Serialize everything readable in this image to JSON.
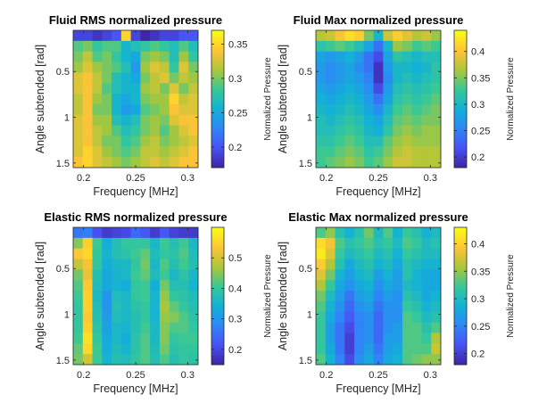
{
  "chart_data": [
    {
      "type": "heatmap",
      "title": "Fluid RMS normalized pressure",
      "xlabel": "Frequency [MHz]",
      "ylabel": "Angle subtended [rad]",
      "colorbar_label": "Normalized Pressure",
      "xlim": [
        0.19,
        0.31
      ],
      "ylim": [
        0.05,
        1.55
      ],
      "xticks": [
        0.2,
        0.25,
        0.3
      ],
      "xtick_labels": [
        "0.2",
        "0.25",
        "0.3"
      ],
      "yticks": [
        0.5,
        1,
        1.5
      ],
      "ytick_labels": [
        "0.5",
        "1",
        "1.5"
      ],
      "clim": [
        0.17,
        0.37
      ],
      "cticks": [
        0.2,
        0.25,
        0.3,
        0.35
      ],
      "ctick_labels": [
        "0.2",
        "0.25",
        "0.3",
        "0.35"
      ],
      "colormap": "parula",
      "grid": false,
      "z": [
        [
          0.19,
          0.19,
          0.18,
          0.19,
          0.2,
          0.35,
          0.19,
          0.17,
          0.18,
          0.19,
          0.19,
          0.2,
          0.2
        ],
        [
          0.29,
          0.3,
          0.28,
          0.29,
          0.29,
          0.26,
          0.27,
          0.28,
          0.29,
          0.28,
          0.27,
          0.29,
          0.27
        ],
        [
          0.3,
          0.32,
          0.29,
          0.3,
          0.28,
          0.26,
          0.25,
          0.3,
          0.31,
          0.3,
          0.27,
          0.31,
          0.28
        ],
        [
          0.31,
          0.33,
          0.31,
          0.3,
          0.29,
          0.27,
          0.24,
          0.31,
          0.33,
          0.32,
          0.28,
          0.33,
          0.3
        ],
        [
          0.33,
          0.34,
          0.32,
          0.3,
          0.27,
          0.26,
          0.25,
          0.3,
          0.32,
          0.33,
          0.3,
          0.32,
          0.31
        ],
        [
          0.33,
          0.34,
          0.32,
          0.29,
          0.27,
          0.26,
          0.26,
          0.31,
          0.32,
          0.3,
          0.33,
          0.3,
          0.32
        ],
        [
          0.32,
          0.34,
          0.31,
          0.3,
          0.26,
          0.25,
          0.26,
          0.3,
          0.31,
          0.31,
          0.35,
          0.32,
          0.33
        ],
        [
          0.32,
          0.34,
          0.3,
          0.3,
          0.26,
          0.24,
          0.25,
          0.29,
          0.3,
          0.31,
          0.34,
          0.33,
          0.33
        ],
        [
          0.33,
          0.34,
          0.31,
          0.31,
          0.27,
          0.26,
          0.27,
          0.3,
          0.31,
          0.3,
          0.33,
          0.34,
          0.34
        ],
        [
          0.33,
          0.34,
          0.32,
          0.31,
          0.29,
          0.27,
          0.28,
          0.3,
          0.31,
          0.29,
          0.31,
          0.33,
          0.34
        ],
        [
          0.33,
          0.34,
          0.32,
          0.3,
          0.3,
          0.28,
          0.29,
          0.31,
          0.32,
          0.3,
          0.31,
          0.32,
          0.33
        ],
        [
          0.33,
          0.35,
          0.33,
          0.31,
          0.3,
          0.29,
          0.3,
          0.32,
          0.32,
          0.31,
          0.32,
          0.33,
          0.34
        ],
        [
          0.34,
          0.35,
          0.33,
          0.32,
          0.31,
          0.3,
          0.31,
          0.32,
          0.33,
          0.32,
          0.33,
          0.34,
          0.34
        ]
      ]
    },
    {
      "type": "heatmap",
      "title": "Fluid Max normalized pressure",
      "xlabel": "Frequency [MHz]",
      "ylabel": "Angle subtended [rad]",
      "colorbar_label": "Normalized Pressure",
      "xlim": [
        0.19,
        0.31
      ],
      "ylim": [
        0.05,
        1.55
      ],
      "xticks": [
        0.2,
        0.25,
        0.3
      ],
      "xtick_labels": [
        "0.2",
        "0.25",
        "0.3"
      ],
      "yticks": [
        0.5,
        1,
        1.5
      ],
      "ytick_labels": [
        "0.5",
        "1",
        "1.5"
      ],
      "clim": [
        0.18,
        0.44
      ],
      "cticks": [
        0.2,
        0.25,
        0.3,
        0.35,
        0.4
      ],
      "ctick_labels": [
        "0.2",
        "0.25",
        "0.3",
        "0.35",
        "0.4"
      ],
      "colormap": "parula",
      "grid": false,
      "z": [
        [
          0.37,
          0.38,
          0.4,
          0.42,
          0.41,
          0.35,
          0.3,
          0.38,
          0.41,
          0.39,
          0.37,
          0.38,
          0.36
        ],
        [
          0.32,
          0.33,
          0.34,
          0.33,
          0.31,
          0.28,
          0.24,
          0.3,
          0.36,
          0.35,
          0.33,
          0.34,
          0.33
        ],
        [
          0.28,
          0.27,
          0.28,
          0.29,
          0.27,
          0.24,
          0.21,
          0.28,
          0.32,
          0.31,
          0.3,
          0.31,
          0.31
        ],
        [
          0.27,
          0.26,
          0.27,
          0.28,
          0.26,
          0.24,
          0.19,
          0.27,
          0.3,
          0.3,
          0.29,
          0.3,
          0.32
        ],
        [
          0.27,
          0.26,
          0.27,
          0.28,
          0.27,
          0.25,
          0.19,
          0.26,
          0.3,
          0.31,
          0.3,
          0.31,
          0.32
        ],
        [
          0.28,
          0.27,
          0.28,
          0.29,
          0.28,
          0.26,
          0.21,
          0.27,
          0.31,
          0.32,
          0.31,
          0.32,
          0.33
        ],
        [
          0.29,
          0.28,
          0.29,
          0.3,
          0.29,
          0.27,
          0.24,
          0.28,
          0.32,
          0.33,
          0.32,
          0.33,
          0.34
        ],
        [
          0.3,
          0.29,
          0.3,
          0.31,
          0.3,
          0.28,
          0.26,
          0.3,
          0.33,
          0.34,
          0.33,
          0.34,
          0.35
        ],
        [
          0.31,
          0.3,
          0.31,
          0.32,
          0.31,
          0.29,
          0.28,
          0.31,
          0.34,
          0.35,
          0.34,
          0.35,
          0.35
        ],
        [
          0.31,
          0.31,
          0.32,
          0.33,
          0.32,
          0.3,
          0.29,
          0.32,
          0.35,
          0.36,
          0.35,
          0.36,
          0.36
        ],
        [
          0.32,
          0.32,
          0.33,
          0.34,
          0.33,
          0.31,
          0.31,
          0.34,
          0.36,
          0.37,
          0.36,
          0.36,
          0.36
        ],
        [
          0.33,
          0.33,
          0.34,
          0.35,
          0.34,
          0.32,
          0.33,
          0.35,
          0.37,
          0.38,
          0.37,
          0.37,
          0.37
        ],
        [
          0.33,
          0.34,
          0.35,
          0.36,
          0.35,
          0.33,
          0.34,
          0.36,
          0.38,
          0.38,
          0.37,
          0.37,
          0.37
        ]
      ]
    },
    {
      "type": "heatmap",
      "title": "Elastic RMS normalized pressure",
      "xlabel": "Frequency [MHz]",
      "ylabel": "Angle subtended [rad]",
      "colorbar_label": "Normalized Pressure",
      "xlim": [
        0.19,
        0.31
      ],
      "ylim": [
        0.05,
        1.55
      ],
      "xticks": [
        0.2,
        0.25,
        0.3
      ],
      "xtick_labels": [
        "0.2",
        "0.25",
        "0.3"
      ],
      "yticks": [
        0.5,
        1,
        1.5
      ],
      "ytick_labels": [
        "0.5",
        "1",
        "1.5"
      ],
      "clim": [
        0.15,
        0.6
      ],
      "cticks": [
        0.2,
        0.3,
        0.4,
        0.5
      ],
      "ctick_labels": [
        "0.2",
        "0.3",
        "0.4",
        "0.5"
      ],
      "colormap": "parula",
      "grid": false,
      "z": [
        [
          0.26,
          0.27,
          0.21,
          0.18,
          0.19,
          0.2,
          0.24,
          0.22,
          0.18,
          0.22,
          0.19,
          0.18,
          0.18
        ],
        [
          0.45,
          0.55,
          0.41,
          0.34,
          0.38,
          0.4,
          0.4,
          0.4,
          0.36,
          0.41,
          0.38,
          0.41,
          0.36
        ],
        [
          0.54,
          0.56,
          0.4,
          0.35,
          0.38,
          0.39,
          0.41,
          0.43,
          0.37,
          0.4,
          0.39,
          0.42,
          0.37
        ],
        [
          0.49,
          0.53,
          0.4,
          0.34,
          0.36,
          0.36,
          0.4,
          0.44,
          0.36,
          0.42,
          0.38,
          0.41,
          0.38
        ],
        [
          0.44,
          0.52,
          0.38,
          0.33,
          0.35,
          0.36,
          0.41,
          0.43,
          0.37,
          0.41,
          0.36,
          0.39,
          0.36
        ],
        [
          0.42,
          0.54,
          0.37,
          0.33,
          0.35,
          0.34,
          0.4,
          0.41,
          0.34,
          0.44,
          0.38,
          0.38,
          0.35
        ],
        [
          0.41,
          0.55,
          0.36,
          0.3,
          0.37,
          0.36,
          0.4,
          0.41,
          0.35,
          0.46,
          0.4,
          0.39,
          0.37
        ],
        [
          0.4,
          0.55,
          0.37,
          0.3,
          0.38,
          0.36,
          0.39,
          0.4,
          0.35,
          0.47,
          0.43,
          0.4,
          0.38
        ],
        [
          0.4,
          0.54,
          0.38,
          0.31,
          0.37,
          0.36,
          0.38,
          0.4,
          0.35,
          0.46,
          0.45,
          0.42,
          0.39
        ],
        [
          0.4,
          0.55,
          0.39,
          0.32,
          0.36,
          0.35,
          0.38,
          0.41,
          0.36,
          0.45,
          0.42,
          0.42,
          0.4
        ],
        [
          0.41,
          0.57,
          0.4,
          0.33,
          0.36,
          0.34,
          0.39,
          0.42,
          0.36,
          0.45,
          0.4,
          0.41,
          0.41
        ],
        [
          0.43,
          0.56,
          0.41,
          0.34,
          0.37,
          0.35,
          0.39,
          0.42,
          0.37,
          0.44,
          0.39,
          0.4,
          0.4
        ],
        [
          0.44,
          0.5,
          0.41,
          0.35,
          0.38,
          0.37,
          0.4,
          0.42,
          0.38,
          0.42,
          0.38,
          0.4,
          0.39
        ]
      ]
    },
    {
      "type": "heatmap",
      "title": "Elastic Max normalized pressure",
      "xlabel": "Frequency [MHz]",
      "ylabel": "Angle subtended [rad]",
      "colorbar_label": "Normalized Pressure",
      "xlim": [
        0.19,
        0.31
      ],
      "ylim": [
        0.05,
        1.55
      ],
      "xticks": [
        0.2,
        0.25,
        0.3
      ],
      "xtick_labels": [
        "0.2",
        "0.25",
        "0.3"
      ],
      "yticks": [
        0.5,
        1,
        1.5
      ],
      "ytick_labels": [
        "0.5",
        "1",
        "1.5"
      ],
      "clim": [
        0.18,
        0.43
      ],
      "cticks": [
        0.2,
        0.25,
        0.3,
        0.35,
        0.4
      ],
      "ctick_labels": [
        "0.2",
        "0.25",
        "0.3",
        "0.35",
        "0.4"
      ],
      "colormap": "parula",
      "grid": false,
      "z": [
        [
          0.33,
          0.35,
          0.31,
          0.29,
          0.31,
          0.34,
          0.3,
          0.33,
          0.29,
          0.32,
          0.31,
          0.29,
          0.3
        ],
        [
          0.41,
          0.39,
          0.33,
          0.31,
          0.32,
          0.33,
          0.31,
          0.32,
          0.3,
          0.33,
          0.32,
          0.3,
          0.31
        ],
        [
          0.42,
          0.38,
          0.32,
          0.3,
          0.31,
          0.32,
          0.3,
          0.31,
          0.29,
          0.32,
          0.31,
          0.3,
          0.3
        ],
        [
          0.4,
          0.36,
          0.31,
          0.28,
          0.3,
          0.31,
          0.29,
          0.3,
          0.28,
          0.31,
          0.3,
          0.29,
          0.29
        ],
        [
          0.38,
          0.34,
          0.29,
          0.27,
          0.29,
          0.3,
          0.27,
          0.29,
          0.27,
          0.31,
          0.29,
          0.28,
          0.28
        ],
        [
          0.36,
          0.32,
          0.28,
          0.26,
          0.28,
          0.29,
          0.26,
          0.28,
          0.27,
          0.3,
          0.29,
          0.28,
          0.28
        ],
        [
          0.34,
          0.3,
          0.27,
          0.24,
          0.27,
          0.28,
          0.25,
          0.27,
          0.26,
          0.31,
          0.3,
          0.28,
          0.29
        ],
        [
          0.33,
          0.29,
          0.26,
          0.23,
          0.26,
          0.27,
          0.24,
          0.26,
          0.26,
          0.32,
          0.31,
          0.29,
          0.3
        ],
        [
          0.32,
          0.28,
          0.25,
          0.22,
          0.25,
          0.26,
          0.23,
          0.26,
          0.26,
          0.33,
          0.32,
          0.3,
          0.31
        ],
        [
          0.32,
          0.27,
          0.24,
          0.21,
          0.25,
          0.26,
          0.23,
          0.26,
          0.27,
          0.33,
          0.33,
          0.31,
          0.33
        ],
        [
          0.32,
          0.27,
          0.24,
          0.2,
          0.25,
          0.26,
          0.23,
          0.27,
          0.27,
          0.33,
          0.33,
          0.32,
          0.36
        ],
        [
          0.32,
          0.28,
          0.24,
          0.2,
          0.25,
          0.27,
          0.24,
          0.27,
          0.28,
          0.33,
          0.33,
          0.33,
          0.37
        ],
        [
          0.33,
          0.29,
          0.25,
          0.21,
          0.26,
          0.28,
          0.25,
          0.28,
          0.29,
          0.33,
          0.34,
          0.35,
          0.35
        ]
      ]
    }
  ]
}
